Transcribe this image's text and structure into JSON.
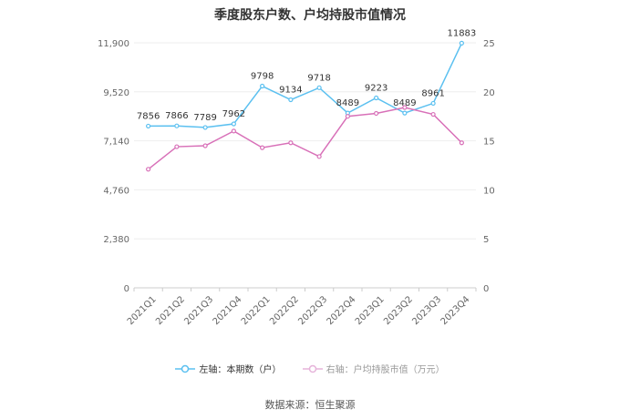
{
  "chart_data": {
    "type": "line",
    "title": "季度股东户数、户均持股市值情况",
    "categories": [
      "2021Q1",
      "2021Q2",
      "2021Q3",
      "2021Q4",
      "2022Q1",
      "2022Q2",
      "2022Q3",
      "2022Q4",
      "2023Q1",
      "2023Q2",
      "2023Q3",
      "2023Q4"
    ],
    "left_axis": {
      "ticks": [
        "0",
        "2,380",
        "4,760",
        "7,140",
        "9,520",
        "11,900"
      ],
      "ylim": [
        0,
        11900
      ]
    },
    "right_axis": {
      "ticks": [
        "0",
        "5",
        "10",
        "15",
        "20",
        "25"
      ],
      "ylim": [
        0,
        25
      ]
    },
    "series": [
      {
        "name": "左轴：本期数（户）",
        "axis": "left",
        "color": "#5bc0f0",
        "values": [
          7856,
          7866,
          7789,
          7962,
          9798,
          9134,
          9718,
          8489,
          9223,
          8489,
          8961,
          11883
        ],
        "labels": [
          "7856",
          "7866",
          "7789",
          "7962",
          "9798",
          "9134",
          "9718",
          "8489",
          "9223",
          "8489",
          "8961",
          "11883"
        ]
      },
      {
        "name": "右轴：户均持股市值（万元）",
        "axis": "right",
        "color": "#d870b8",
        "values": [
          12.1,
          14.4,
          14.5,
          16.0,
          14.3,
          14.8,
          13.4,
          17.5,
          17.8,
          18.4,
          17.7,
          14.8
        ]
      }
    ],
    "grid": true,
    "legend_position": "bottom"
  },
  "source": "数据来源：恒生聚源"
}
